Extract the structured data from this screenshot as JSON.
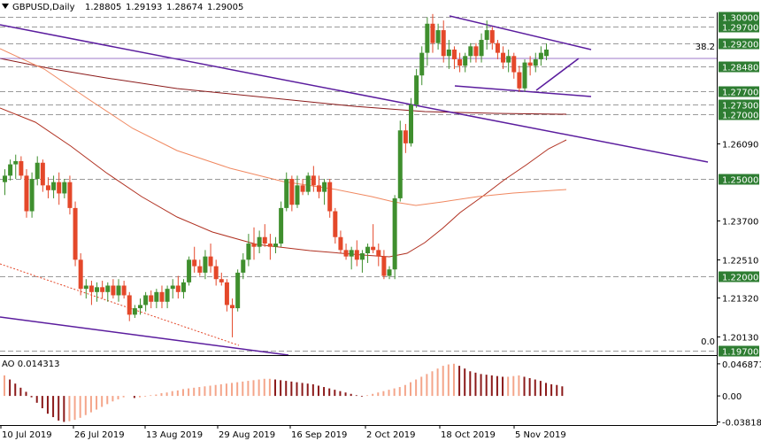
{
  "header": {
    "symbol": "GBPUSD,Daily",
    "open": "1.28805",
    "high": "1.29193",
    "low": "1.28674",
    "close": "1.29005",
    "collapse_icon": "triangle-down-icon"
  },
  "colors": {
    "bull": "#3f8f2e",
    "bear": "#e4482a",
    "ma_slow": "#8b1a1a",
    "ma_mid": "#b03020",
    "ma_fast": "#f08860",
    "trend": "#5b1d9e",
    "grid_dash": "#9a9a9a",
    "level_box": "#2e7d32",
    "ao_up": "#f4a58a",
    "ao_down": "#8b1a1a"
  },
  "chart_data": [
    {
      "type": "candlestick",
      "title": "GBPUSD,Daily",
      "ylim": [
        1.1955,
        1.3015
      ],
      "y_ticks": [
        "1.30000",
        "1.29700",
        "1.29200",
        "1.28480",
        "1.27700",
        "1.27300",
        "1.27000",
        "1.26090",
        "1.25000",
        "1.23700",
        "1.22510",
        "1.22000",
        "1.21320",
        "1.20130",
        "1.19700"
      ],
      "highlighted_levels": [
        "1.30000",
        "1.29700",
        "1.29200",
        "1.28480",
        "1.27700",
        "1.27300",
        "1.27000",
        "1.25000",
        "1.22000",
        "1.19700"
      ],
      "x_ticks": [
        "10 Jul 2019",
        "26 Jul 2019",
        "13 Aug 2019",
        "29 Aug 2019",
        "16 Sep 2019",
        "2 Oct 2019",
        "18 Oct 2019",
        "5 Nov 2019"
      ],
      "fib_labels": [
        {
          "text": "38.2",
          "price": 1.2895
        },
        {
          "text": "0.0",
          "price": 1.1982
        }
      ],
      "candles": [
        {
          "o": 1.249,
          "h": 1.253,
          "l": 1.245,
          "c": 1.251
        },
        {
          "o": 1.251,
          "h": 1.256,
          "l": 1.2495,
          "c": 1.2545
        },
        {
          "o": 1.2545,
          "h": 1.2575,
          "l": 1.25,
          "c": 1.2555
        },
        {
          "o": 1.2555,
          "h": 1.257,
          "l": 1.25,
          "c": 1.251
        },
        {
          "o": 1.251,
          "h": 1.253,
          "l": 1.238,
          "c": 1.24
        },
        {
          "o": 1.24,
          "h": 1.252,
          "l": 1.238,
          "c": 1.25
        },
        {
          "o": 1.25,
          "h": 1.257,
          "l": 1.248,
          "c": 1.255
        },
        {
          "o": 1.255,
          "h": 1.256,
          "l": 1.246,
          "c": 1.248
        },
        {
          "o": 1.248,
          "h": 1.2505,
          "l": 1.244,
          "c": 1.2465
        },
        {
          "o": 1.2465,
          "h": 1.251,
          "l": 1.244,
          "c": 1.249
        },
        {
          "o": 1.249,
          "h": 1.252,
          "l": 1.242,
          "c": 1.2455
        },
        {
          "o": 1.2455,
          "h": 1.25,
          "l": 1.244,
          "c": 1.249
        },
        {
          "o": 1.249,
          "h": 1.251,
          "l": 1.239,
          "c": 1.241
        },
        {
          "o": 1.241,
          "h": 1.243,
          "l": 1.223,
          "c": 1.225
        },
        {
          "o": 1.225,
          "h": 1.227,
          "l": 1.214,
          "c": 1.216
        },
        {
          "o": 1.216,
          "h": 1.219,
          "l": 1.213,
          "c": 1.217
        },
        {
          "o": 1.217,
          "h": 1.2185,
          "l": 1.211,
          "c": 1.215
        },
        {
          "o": 1.215,
          "h": 1.218,
          "l": 1.212,
          "c": 1.2165
        },
        {
          "o": 1.2165,
          "h": 1.2185,
          "l": 1.213,
          "c": 1.215
        },
        {
          "o": 1.215,
          "h": 1.218,
          "l": 1.212,
          "c": 1.217
        },
        {
          "o": 1.217,
          "h": 1.219,
          "l": 1.213,
          "c": 1.214
        },
        {
          "o": 1.214,
          "h": 1.219,
          "l": 1.212,
          "c": 1.217
        },
        {
          "o": 1.217,
          "h": 1.2185,
          "l": 1.213,
          "c": 1.214
        },
        {
          "o": 1.214,
          "h": 1.215,
          "l": 1.206,
          "c": 1.208
        },
        {
          "o": 1.208,
          "h": 1.211,
          "l": 1.207,
          "c": 1.21
        },
        {
          "o": 1.21,
          "h": 1.213,
          "l": 1.208,
          "c": 1.211
        },
        {
          "o": 1.211,
          "h": 1.215,
          "l": 1.209,
          "c": 1.214
        },
        {
          "o": 1.214,
          "h": 1.2155,
          "l": 1.21,
          "c": 1.212
        },
        {
          "o": 1.212,
          "h": 1.216,
          "l": 1.21,
          "c": 1.215
        },
        {
          "o": 1.215,
          "h": 1.217,
          "l": 1.21,
          "c": 1.212
        },
        {
          "o": 1.212,
          "h": 1.217,
          "l": 1.21,
          "c": 1.216
        },
        {
          "o": 1.216,
          "h": 1.219,
          "l": 1.213,
          "c": 1.217
        },
        {
          "o": 1.217,
          "h": 1.22,
          "l": 1.213,
          "c": 1.215
        },
        {
          "o": 1.215,
          "h": 1.219,
          "l": 1.213,
          "c": 1.218
        },
        {
          "o": 1.218,
          "h": 1.226,
          "l": 1.217,
          "c": 1.225
        },
        {
          "o": 1.225,
          "h": 1.229,
          "l": 1.221,
          "c": 1.223
        },
        {
          "o": 1.223,
          "h": 1.225,
          "l": 1.22,
          "c": 1.221
        },
        {
          "o": 1.221,
          "h": 1.228,
          "l": 1.219,
          "c": 1.226
        },
        {
          "o": 1.226,
          "h": 1.23,
          "l": 1.221,
          "c": 1.223
        },
        {
          "o": 1.223,
          "h": 1.225,
          "l": 1.217,
          "c": 1.219
        },
        {
          "o": 1.219,
          "h": 1.221,
          "l": 1.217,
          "c": 1.218
        },
        {
          "o": 1.218,
          "h": 1.219,
          "l": 1.209,
          "c": 1.211
        },
        {
          "o": 1.211,
          "h": 1.213,
          "l": 1.201,
          "c": 1.21
        },
        {
          "o": 1.21,
          "h": 1.222,
          "l": 1.209,
          "c": 1.221
        },
        {
          "o": 1.221,
          "h": 1.227,
          "l": 1.219,
          "c": 1.225
        },
        {
          "o": 1.225,
          "h": 1.233,
          "l": 1.223,
          "c": 1.23
        },
        {
          "o": 1.23,
          "h": 1.235,
          "l": 1.225,
          "c": 1.229
        },
        {
          "o": 1.229,
          "h": 1.234,
          "l": 1.227,
          "c": 1.232
        },
        {
          "o": 1.232,
          "h": 1.236,
          "l": 1.229,
          "c": 1.23
        },
        {
          "o": 1.23,
          "h": 1.233,
          "l": 1.225,
          "c": 1.229
        },
        {
          "o": 1.229,
          "h": 1.232,
          "l": 1.227,
          "c": 1.23
        },
        {
          "o": 1.23,
          "h": 1.243,
          "l": 1.229,
          "c": 1.241
        },
        {
          "o": 1.241,
          "h": 1.252,
          "l": 1.24,
          "c": 1.25
        },
        {
          "o": 1.25,
          "h": 1.251,
          "l": 1.24,
          "c": 1.242
        },
        {
          "o": 1.242,
          "h": 1.251,
          "l": 1.241,
          "c": 1.248
        },
        {
          "o": 1.248,
          "h": 1.25,
          "l": 1.245,
          "c": 1.246
        },
        {
          "o": 1.246,
          "h": 1.252,
          "l": 1.245,
          "c": 1.251
        },
        {
          "o": 1.251,
          "h": 1.254,
          "l": 1.246,
          "c": 1.248
        },
        {
          "o": 1.248,
          "h": 1.251,
          "l": 1.244,
          "c": 1.246
        },
        {
          "o": 1.246,
          "h": 1.25,
          "l": 1.242,
          "c": 1.249
        },
        {
          "o": 1.249,
          "h": 1.25,
          "l": 1.238,
          "c": 1.24
        },
        {
          "o": 1.24,
          "h": 1.241,
          "l": 1.23,
          "c": 1.232
        },
        {
          "o": 1.232,
          "h": 1.234,
          "l": 1.227,
          "c": 1.228
        },
        {
          "o": 1.228,
          "h": 1.23,
          "l": 1.225,
          "c": 1.226
        },
        {
          "o": 1.226,
          "h": 1.229,
          "l": 1.222,
          "c": 1.228
        },
        {
          "o": 1.228,
          "h": 1.231,
          "l": 1.223,
          "c": 1.225
        },
        {
          "o": 1.225,
          "h": 1.228,
          "l": 1.221,
          "c": 1.227
        },
        {
          "o": 1.227,
          "h": 1.23,
          "l": 1.224,
          "c": 1.229
        },
        {
          "o": 1.229,
          "h": 1.236,
          "l": 1.227,
          "c": 1.228
        },
        {
          "o": 1.228,
          "h": 1.23,
          "l": 1.223,
          "c": 1.226
        },
        {
          "o": 1.226,
          "h": 1.228,
          "l": 1.219,
          "c": 1.22
        },
        {
          "o": 1.22,
          "h": 1.223,
          "l": 1.219,
          "c": 1.222
        },
        {
          "o": 1.222,
          "h": 1.245,
          "l": 1.219,
          "c": 1.244
        },
        {
          "o": 1.244,
          "h": 1.268,
          "l": 1.243,
          "c": 1.265
        },
        {
          "o": 1.265,
          "h": 1.267,
          "l": 1.258,
          "c": 1.261
        },
        {
          "o": 1.261,
          "h": 1.275,
          "l": 1.26,
          "c": 1.273
        },
        {
          "o": 1.273,
          "h": 1.284,
          "l": 1.272,
          "c": 1.282
        },
        {
          "o": 1.282,
          "h": 1.291,
          "l": 1.279,
          "c": 1.289
        },
        {
          "o": 1.289,
          "h": 1.3,
          "l": 1.285,
          "c": 1.298
        },
        {
          "o": 1.298,
          "h": 1.301,
          "l": 1.289,
          "c": 1.292
        },
        {
          "o": 1.292,
          "h": 1.298,
          "l": 1.29,
          "c": 1.296
        },
        {
          "o": 1.296,
          "h": 1.299,
          "l": 1.286,
          "c": 1.288
        },
        {
          "o": 1.288,
          "h": 1.293,
          "l": 1.284,
          "c": 1.29
        },
        {
          "o": 1.29,
          "h": 1.291,
          "l": 1.284,
          "c": 1.287
        },
        {
          "o": 1.287,
          "h": 1.289,
          "l": 1.283,
          "c": 1.285
        },
        {
          "o": 1.285,
          "h": 1.289,
          "l": 1.283,
          "c": 1.288
        },
        {
          "o": 1.288,
          "h": 1.292,
          "l": 1.286,
          "c": 1.291
        },
        {
          "o": 1.291,
          "h": 1.292,
          "l": 1.286,
          "c": 1.288
        },
        {
          "o": 1.288,
          "h": 1.295,
          "l": 1.286,
          "c": 1.293
        },
        {
          "o": 1.293,
          "h": 1.299,
          "l": 1.29,
          "c": 1.296
        },
        {
          "o": 1.296,
          "h": 1.297,
          "l": 1.29,
          "c": 1.292
        },
        {
          "o": 1.292,
          "h": 1.293,
          "l": 1.287,
          "c": 1.289
        },
        {
          "o": 1.289,
          "h": 1.291,
          "l": 1.284,
          "c": 1.286
        },
        {
          "o": 1.286,
          "h": 1.29,
          "l": 1.283,
          "c": 1.288
        },
        {
          "o": 1.288,
          "h": 1.289,
          "l": 1.281,
          "c": 1.283
        },
        {
          "o": 1.283,
          "h": 1.285,
          "l": 1.277,
          "c": 1.278
        },
        {
          "o": 1.278,
          "h": 1.287,
          "l": 1.277,
          "c": 1.286
        },
        {
          "o": 1.286,
          "h": 1.288,
          "l": 1.282,
          "c": 1.285
        },
        {
          "o": 1.285,
          "h": 1.289,
          "l": 1.283,
          "c": 1.287
        },
        {
          "o": 1.287,
          "h": 1.291,
          "l": 1.285,
          "c": 1.289
        },
        {
          "o": 1.288,
          "h": 1.2919,
          "l": 1.2867,
          "c": 1.29
        }
      ]
    },
    {
      "type": "bar",
      "title": "AO 0.014313",
      "ylim": [
        -0.04,
        0.05
      ],
      "y_ticks": [
        "0.046871",
        "0.00",
        "-0.038182"
      ],
      "values": [
        0.03,
        0.024,
        0.018,
        0.012,
        0.006,
        -0.002,
        -0.01,
        -0.018,
        -0.026,
        -0.031,
        -0.036,
        -0.038,
        -0.037,
        -0.035,
        -0.032,
        -0.028,
        -0.024,
        -0.02,
        -0.016,
        -0.012,
        -0.008,
        -0.005,
        -0.002,
        0.0,
        -0.003,
        -0.002,
        -0.001,
        0.001,
        0.002,
        0.004,
        0.005,
        0.007,
        0.008,
        0.01,
        0.011,
        0.012,
        0.013,
        0.014,
        0.015,
        0.016,
        0.017,
        0.018,
        0.019,
        0.02,
        0.021,
        0.022,
        0.023,
        0.024,
        0.025,
        0.025,
        0.024,
        0.023,
        0.022,
        0.021,
        0.02,
        0.019,
        0.018,
        0.017,
        0.015,
        0.013,
        0.011,
        0.009,
        0.007,
        0.005,
        0.003,
        0.001,
        -0.001,
        0.001,
        0.003,
        0.005,
        0.007,
        0.009,
        0.011,
        0.013,
        0.016,
        0.02,
        0.024,
        0.028,
        0.032,
        0.036,
        0.04,
        0.044,
        0.046,
        0.047,
        0.044,
        0.04,
        0.036,
        0.034,
        0.032,
        0.031,
        0.03,
        0.029,
        0.028,
        0.028,
        0.029,
        0.03,
        0.028,
        0.026,
        0.024,
        0.022,
        0.019,
        0.017,
        0.016,
        0.014
      ]
    }
  ]
}
